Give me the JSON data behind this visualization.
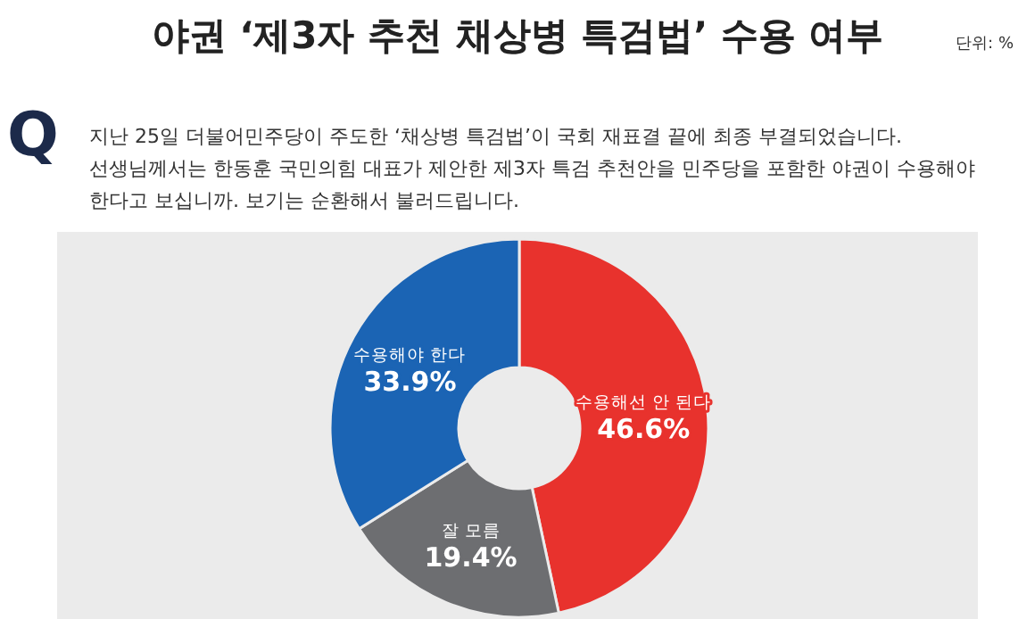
{
  "chart_data": {
    "type": "donut",
    "title": "야권 ‘제3자 추천 채상병 특검법’ 수용 여부",
    "subtitle": "지난 25일 더불어민주당이 주도한 ‘채상병 특검법’이 국회 재표결 끝에 최종 부결되었습니다. 선생님께서는 한동훈 국민의힘 대표가 제안한 제3자 특검 추천안을 민주당을 포함한 야권이 수용해야 한다고 보십니까. 보기는 순환해서 불러드립니다.",
    "annotations": [
      "단위: %",
      "Q"
    ],
    "categories": [
      "수용해선 안 된다",
      "잘 모름",
      "수용해야 한다"
    ],
    "values": [
      46.6,
      19.4,
      33.9
    ],
    "value_labels": [
      "46.6%",
      "19.4%",
      "33.9%"
    ],
    "colors": [
      "#e8322d",
      "#6d6e71",
      "#1b64b4"
    ]
  }
}
